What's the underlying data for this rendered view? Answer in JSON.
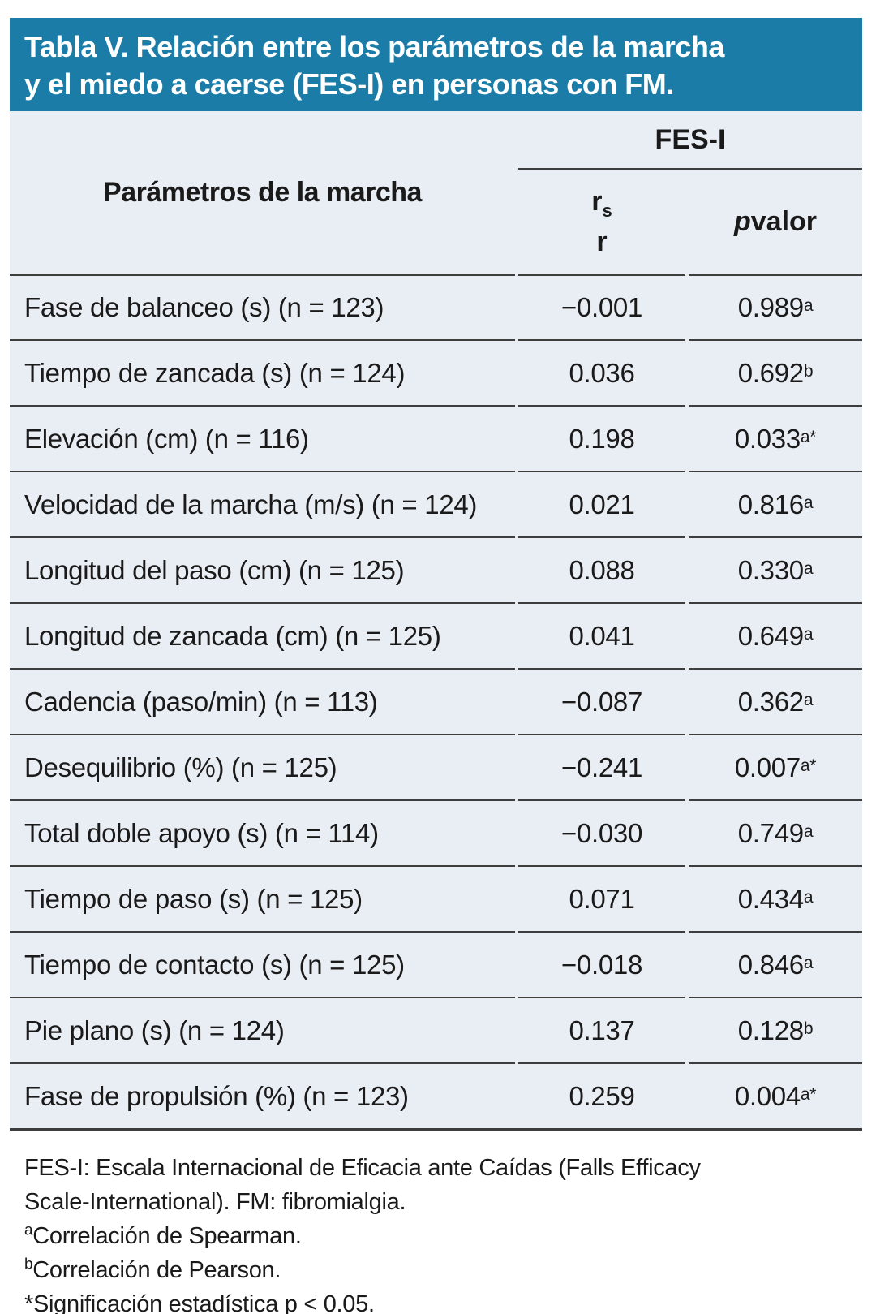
{
  "title": {
    "line1": "Tabla V. Relación entre los parámetros de la marcha",
    "line2": "y el miedo a caerse (FES-I) en personas con FM."
  },
  "colors": {
    "title_bar_bg": "#1b7da7",
    "title_text": "#ffffff",
    "table_bg": "#e9edf4",
    "divider": "#3d3d3d",
    "body_text": "#1a1a1a"
  },
  "table": {
    "col1_header": "Parámetros de la marcha",
    "group_header": "FES-I",
    "r_header": {
      "main": "r",
      "sub": "s",
      "second_line": "r"
    },
    "p_header": {
      "italic": "p",
      "rest": " valor"
    },
    "rows": [
      {
        "label": "Fase de balanceo (s) (n = 123)",
        "r": "−0.001",
        "p": "0.989",
        "sup": "a"
      },
      {
        "label": "Tiempo de zancada (s) (n = 124)",
        "r": "0.036",
        "p": "0.692",
        "sup": "b"
      },
      {
        "label": "Elevación (cm) (n = 116)",
        "r": "0.198",
        "p": "0.033",
        "sup": "a*"
      },
      {
        "label": "Velocidad de la marcha (m/s) (n = 124)",
        "r": "0.021",
        "p": "0.816",
        "sup": "a"
      },
      {
        "label": "Longitud del paso (cm) (n = 125)",
        "r": "0.088",
        "p": "0.330",
        "sup": "a"
      },
      {
        "label": "Longitud de zancada (cm) (n = 125)",
        "r": "0.041",
        "p": "0.649",
        "sup": "a"
      },
      {
        "label": "Cadencia (paso/min) (n = 113)",
        "r": "−0.087",
        "p": "0.362",
        "sup": "a"
      },
      {
        "label": "Desequilibrio (%) (n = 125)",
        "r": "−0.241",
        "p": "0.007",
        "sup": "a*"
      },
      {
        "label": "Total doble apoyo (s) (n = 114)",
        "r": "−0.030",
        "p": "0.749",
        "sup": "a"
      },
      {
        "label": "Tiempo de paso (s) (n = 125)",
        "r": "0.071",
        "p": "0.434",
        "sup": "a"
      },
      {
        "label": "Tiempo de contacto (s) (n = 125)",
        "r": "−0.018",
        "p": "0.846",
        "sup": "a"
      },
      {
        "label": "Pie plano (s) (n = 124)",
        "r": "0.137",
        "p": "0.128",
        "sup": "b"
      },
      {
        "label": "Fase de propulsión (%) (n = 123)",
        "r": "0.259",
        "p": "0.004",
        "sup": "a*"
      }
    ]
  },
  "footnotes": [
    {
      "sup": "",
      "text": "FES-I: Escala Internacional de Eficacia ante Caídas (Falls Efficacy Scale-International). FM: fibromialgia."
    },
    {
      "sup": "a",
      "text": "Correlación de Spearman."
    },
    {
      "sup": "b",
      "text": "Correlación de Pearson."
    },
    {
      "sup": "",
      "text": "*Significación estadística p < 0.05."
    }
  ]
}
